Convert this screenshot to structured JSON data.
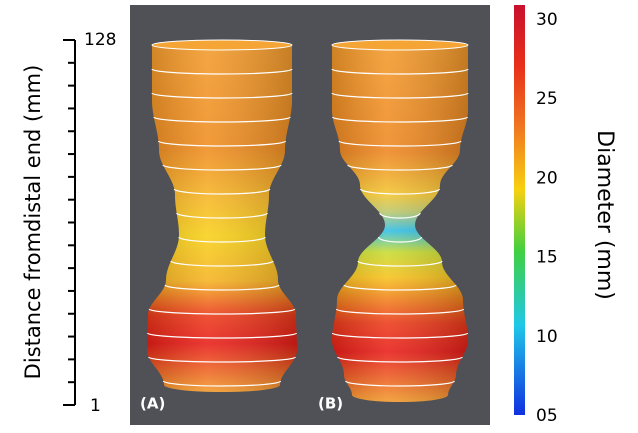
{
  "left_axis": {
    "label": "Distance fromdistal end (mm)",
    "top": "128",
    "bottom": "1"
  },
  "panels": [
    {
      "label": "(A)"
    },
    {
      "label": "(B)"
    }
  ],
  "colorbar": {
    "label": "Diameter (mm)",
    "ticks": [
      "30",
      "25",
      "20",
      "15",
      "10",
      "05"
    ]
  }
}
